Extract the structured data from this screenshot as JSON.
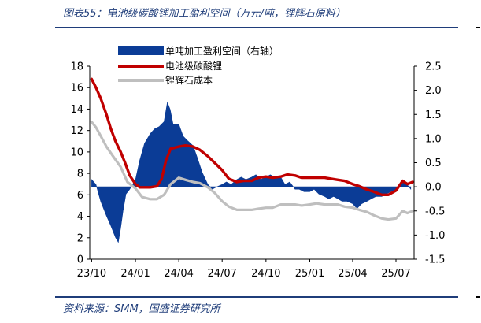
{
  "header": {
    "title": "图表55：电池级碳酸锂加工盈利空间（万元/吨，锂辉石原料）"
  },
  "footer": {
    "source": "资料来源：SMM，国盛证券研究所"
  },
  "colors": {
    "title": "#1F3D7A",
    "profit": "#0B3C96",
    "carbonate": "#C00000",
    "spodumene": "#BFBFBF"
  },
  "chart_data": {
    "type": "area",
    "left_axis": {
      "min": 0,
      "max": 18,
      "ticks": [
        0,
        2,
        4,
        6,
        8,
        10,
        12,
        14,
        16,
        18
      ],
      "tick_labels": [
        "0",
        "2",
        "4",
        "6",
        "8",
        "10",
        "12",
        "14",
        "16",
        "18"
      ]
    },
    "right_axis": {
      "min": -1.5,
      "max": 2.5,
      "ticks": [
        -1.5,
        -1.0,
        -0.5,
        0.0,
        0.5,
        1.0,
        1.5,
        2.0,
        2.5
      ],
      "tick_labels": [
        "-1.5",
        "-1.0",
        "-0.5",
        "0.0",
        "0.5",
        "1.0",
        "1.5",
        "2.0",
        "2.5"
      ]
    },
    "x_axis": {
      "ticks": [
        "2023-10",
        "2024-01",
        "2024-04",
        "2024-07",
        "2024-10",
        "2025-01",
        "2025-04",
        "2025-07"
      ],
      "tick_labels": [
        "23/10",
        "24/01",
        "24/04",
        "24/07",
        "24/10",
        "25/01",
        "25/04",
        "25/07"
      ]
    },
    "legend": {
      "position": "top-center"
    },
    "grid": false,
    "series": [
      {
        "name": "单吨加工盈利空间（右轴）",
        "type": "area",
        "axis": "right",
        "points": [
          [
            "2023-10-01",
            0.15
          ],
          [
            "2023-10-10",
            0.05
          ],
          [
            "2023-10-20",
            -0.3
          ],
          [
            "2023-11-01",
            -0.6
          ],
          [
            "2023-11-10",
            -0.8
          ],
          [
            "2023-11-20",
            -1.05
          ],
          [
            "2023-11-26",
            -1.15
          ],
          [
            "2023-12-01",
            -0.85
          ],
          [
            "2023-12-06",
            -0.5
          ],
          [
            "2023-12-12",
            -0.15
          ],
          [
            "2023-12-20",
            -0.05
          ],
          [
            "2024-01-01",
            0.15
          ],
          [
            "2024-01-10",
            0.55
          ],
          [
            "2024-01-20",
            0.9
          ],
          [
            "2024-02-01",
            1.1
          ],
          [
            "2024-02-10",
            1.2
          ],
          [
            "2024-02-20",
            1.25
          ],
          [
            "2024-03-01",
            1.35
          ],
          [
            "2024-03-08",
            1.75
          ],
          [
            "2024-03-14",
            1.6
          ],
          [
            "2024-03-20",
            1.3
          ],
          [
            "2024-04-01",
            1.3
          ],
          [
            "2024-04-10",
            1.05
          ],
          [
            "2024-04-20",
            0.95
          ],
          [
            "2024-05-01",
            0.85
          ],
          [
            "2024-05-10",
            0.6
          ],
          [
            "2024-05-20",
            0.3
          ],
          [
            "2024-06-01",
            0.05
          ],
          [
            "2024-06-10",
            -0.05
          ],
          [
            "2024-06-20",
            0.0
          ],
          [
            "2024-07-01",
            0.05
          ],
          [
            "2024-07-10",
            0.1
          ],
          [
            "2024-07-20",
            0.05
          ],
          [
            "2024-08-01",
            0.15
          ],
          [
            "2024-08-10",
            0.2
          ],
          [
            "2024-08-20",
            0.15
          ],
          [
            "2024-09-01",
            0.2
          ],
          [
            "2024-09-10",
            0.25
          ],
          [
            "2024-09-20",
            0.15
          ],
          [
            "2024-10-01",
            0.2
          ],
          [
            "2024-10-10",
            0.25
          ],
          [
            "2024-10-20",
            0.2
          ],
          [
            "2024-11-01",
            0.2
          ],
          [
            "2024-11-10",
            0.05
          ],
          [
            "2024-11-20",
            0.1
          ],
          [
            "2024-12-01",
            -0.05
          ],
          [
            "2024-12-10",
            -0.05
          ],
          [
            "2024-12-20",
            -0.1
          ],
          [
            "2025-01-01",
            -0.1
          ],
          [
            "2025-01-10",
            -0.05
          ],
          [
            "2025-01-20",
            -0.15
          ],
          [
            "2025-02-01",
            -0.2
          ],
          [
            "2025-02-10",
            -0.25
          ],
          [
            "2025-02-20",
            -0.2
          ],
          [
            "2025-03-01",
            -0.25
          ],
          [
            "2025-03-10",
            -0.3
          ],
          [
            "2025-03-20",
            -0.3
          ],
          [
            "2025-04-01",
            -0.35
          ],
          [
            "2025-04-10",
            -0.45
          ],
          [
            "2025-04-20",
            -0.35
          ],
          [
            "2025-05-01",
            -0.3
          ],
          [
            "2025-05-10",
            -0.25
          ],
          [
            "2025-05-20",
            -0.2
          ],
          [
            "2025-06-01",
            -0.2
          ],
          [
            "2025-06-10",
            -0.15
          ],
          [
            "2025-06-20",
            -0.1
          ],
          [
            "2025-07-01",
            -0.05
          ],
          [
            "2025-07-10",
            0.05
          ],
          [
            "2025-07-20",
            0.1
          ],
          [
            "2025-08-01",
            -0.05
          ]
        ]
      },
      {
        "name": "电池级碳酸锂",
        "type": "line",
        "axis": "left",
        "points": [
          [
            "2023-10-01",
            16.8
          ],
          [
            "2023-10-10",
            16.0
          ],
          [
            "2023-10-20",
            15.0
          ],
          [
            "2023-11-01",
            13.5
          ],
          [
            "2023-11-10",
            12.2
          ],
          [
            "2023-11-20",
            11.0
          ],
          [
            "2023-12-01",
            10.0
          ],
          [
            "2023-12-10",
            9.0
          ],
          [
            "2023-12-20",
            7.8
          ],
          [
            "2024-01-01",
            7.0
          ],
          [
            "2024-01-10",
            6.7
          ],
          [
            "2024-02-01",
            6.7
          ],
          [
            "2024-02-15",
            6.8
          ],
          [
            "2024-02-25",
            7.5
          ],
          [
            "2024-03-05",
            9.2
          ],
          [
            "2024-03-15",
            10.3
          ],
          [
            "2024-04-01",
            10.5
          ],
          [
            "2024-04-15",
            10.6
          ],
          [
            "2024-05-01",
            10.5
          ],
          [
            "2024-05-15",
            10.2
          ],
          [
            "2024-06-01",
            9.6
          ],
          [
            "2024-06-15",
            9.0
          ],
          [
            "2024-07-01",
            8.3
          ],
          [
            "2024-07-15",
            7.5
          ],
          [
            "2024-08-01",
            7.2
          ],
          [
            "2024-08-15",
            7.3
          ],
          [
            "2024-09-01",
            7.3
          ],
          [
            "2024-09-15",
            7.6
          ],
          [
            "2024-10-01",
            7.7
          ],
          [
            "2024-10-15",
            7.6
          ],
          [
            "2024-11-01",
            7.7
          ],
          [
            "2024-11-15",
            7.9
          ],
          [
            "2024-12-01",
            7.8
          ],
          [
            "2024-12-15",
            7.6
          ],
          [
            "2025-01-01",
            7.6
          ],
          [
            "2025-01-15",
            7.6
          ],
          [
            "2025-02-01",
            7.6
          ],
          [
            "2025-02-15",
            7.5
          ],
          [
            "2025-03-01",
            7.4
          ],
          [
            "2025-03-15",
            7.3
          ],
          [
            "2025-04-01",
            7.0
          ],
          [
            "2025-04-15",
            6.8
          ],
          [
            "2025-05-01",
            6.5
          ],
          [
            "2025-05-15",
            6.3
          ],
          [
            "2025-06-01",
            6.0
          ],
          [
            "2025-06-15",
            6.0
          ],
          [
            "2025-07-01",
            6.4
          ],
          [
            "2025-07-15",
            7.3
          ],
          [
            "2025-07-25",
            7.0
          ],
          [
            "2025-08-05",
            7.2
          ]
        ]
      },
      {
        "name": "锂辉石成本",
        "type": "line",
        "axis": "left",
        "points": [
          [
            "2023-10-01",
            12.8
          ],
          [
            "2023-10-10",
            12.3
          ],
          [
            "2023-10-20",
            11.5
          ],
          [
            "2023-11-01",
            10.5
          ],
          [
            "2023-11-15",
            9.6
          ],
          [
            "2023-12-01",
            8.6
          ],
          [
            "2023-12-15",
            7.2
          ],
          [
            "2024-01-01",
            6.6
          ],
          [
            "2024-01-15",
            5.8
          ],
          [
            "2024-02-01",
            5.6
          ],
          [
            "2024-02-15",
            5.6
          ],
          [
            "2024-03-01",
            6.0
          ],
          [
            "2024-03-15",
            7.0
          ],
          [
            "2024-04-01",
            7.6
          ],
          [
            "2024-04-15",
            7.4
          ],
          [
            "2024-05-01",
            7.2
          ],
          [
            "2024-05-15",
            7.1
          ],
          [
            "2024-06-01",
            6.7
          ],
          [
            "2024-06-15",
            6.2
          ],
          [
            "2024-07-01",
            5.4
          ],
          [
            "2024-07-15",
            4.9
          ],
          [
            "2024-08-01",
            4.6
          ],
          [
            "2024-08-15",
            4.6
          ],
          [
            "2024-09-01",
            4.6
          ],
          [
            "2024-09-15",
            4.7
          ],
          [
            "2024-10-01",
            4.8
          ],
          [
            "2024-10-15",
            4.8
          ],
          [
            "2024-11-01",
            5.1
          ],
          [
            "2024-11-15",
            5.1
          ],
          [
            "2024-12-01",
            5.1
          ],
          [
            "2024-12-15",
            5.0
          ],
          [
            "2025-01-01",
            5.1
          ],
          [
            "2025-01-15",
            5.2
          ],
          [
            "2025-02-01",
            5.1
          ],
          [
            "2025-02-15",
            5.1
          ],
          [
            "2025-03-01",
            5.1
          ],
          [
            "2025-03-15",
            4.9
          ],
          [
            "2025-04-01",
            4.8
          ],
          [
            "2025-04-15",
            4.6
          ],
          [
            "2025-05-01",
            4.4
          ],
          [
            "2025-05-15",
            4.1
          ],
          [
            "2025-06-01",
            3.8
          ],
          [
            "2025-06-15",
            3.7
          ],
          [
            "2025-07-01",
            3.8
          ],
          [
            "2025-07-15",
            4.5
          ],
          [
            "2025-07-25",
            4.3
          ],
          [
            "2025-08-05",
            4.5
          ]
        ]
      }
    ]
  }
}
